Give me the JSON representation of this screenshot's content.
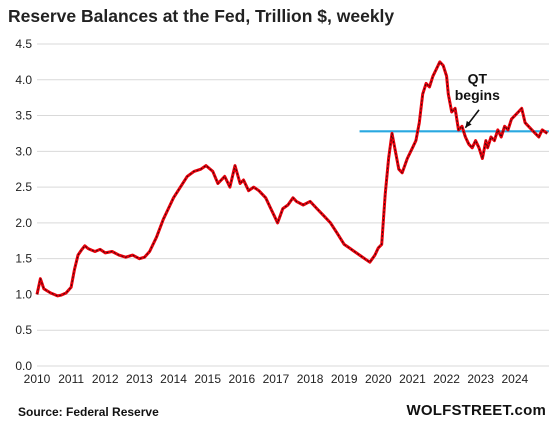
{
  "chart_data": {
    "type": "line",
    "title": "Reserve Balances at the Fed, Trillion $, weekly",
    "xlabel": "",
    "ylabel": "",
    "ylim": [
      0.0,
      4.5
    ],
    "xlim": [
      2010,
      2025
    ],
    "yticks": [
      "0.0",
      "0.5",
      "1.0",
      "1.5",
      "2.0",
      "2.5",
      "3.0",
      "3.5",
      "4.0",
      "4.5"
    ],
    "xticks": [
      "2010",
      "2011",
      "2012",
      "2013",
      "2014",
      "2015",
      "2016",
      "2017",
      "2018",
      "2019",
      "2020",
      "2021",
      "2022",
      "2023",
      "2024"
    ],
    "grid": "horizontal",
    "series": [
      {
        "color": "#e8000b",
        "x": [
          2010.0,
          2010.1,
          2010.2,
          2010.3,
          2010.4,
          2010.5,
          2010.6,
          2010.7,
          2010.85,
          2011.0,
          2011.1,
          2011.2,
          2011.3,
          2011.4,
          2011.5,
          2011.6,
          2011.7,
          2011.85,
          2012.0,
          2012.2,
          2012.4,
          2012.6,
          2012.8,
          2013.0,
          2013.15,
          2013.3,
          2013.5,
          2013.7,
          2013.9,
          2014.0,
          2014.2,
          2014.4,
          2014.6,
          2014.8,
          2014.95,
          2015.05,
          2015.15,
          2015.3,
          2015.5,
          2015.65,
          2015.8,
          2015.95,
          2016.05,
          2016.2,
          2016.35,
          2016.5,
          2016.7,
          2016.85,
          2016.95,
          2017.05,
          2017.2,
          2017.35,
          2017.5,
          2017.6,
          2017.8,
          2018.0,
          2018.2,
          2018.4,
          2018.6,
          2018.8,
          2019.0,
          2019.15,
          2019.3,
          2019.45,
          2019.6,
          2019.75,
          2019.9,
          2020.0,
          2020.1,
          2020.2,
          2020.3,
          2020.4,
          2020.5,
          2020.6,
          2020.7,
          2020.85,
          2021.0,
          2021.1,
          2021.2,
          2021.3,
          2021.4,
          2021.5,
          2021.6,
          2021.7,
          2021.8,
          2021.9,
          2022.0,
          2022.05,
          2022.15,
          2022.25,
          2022.35,
          2022.45,
          2022.55,
          2022.65,
          2022.75,
          2022.85,
          2022.95,
          2023.05,
          2023.15,
          2023.2,
          2023.3,
          2023.4,
          2023.5,
          2023.6,
          2023.7,
          2023.8,
          2023.9,
          2024.0,
          2024.1,
          2024.2,
          2024.3,
          2024.4,
          2024.5,
          2024.6,
          2024.7,
          2024.8,
          2024.95
        ],
        "y": [
          1.0,
          1.22,
          1.08,
          1.05,
          1.02,
          1.0,
          0.98,
          0.99,
          1.02,
          1.1,
          1.35,
          1.55,
          1.62,
          1.68,
          1.64,
          1.62,
          1.6,
          1.63,
          1.58,
          1.6,
          1.55,
          1.52,
          1.55,
          1.5,
          1.52,
          1.6,
          1.8,
          2.05,
          2.25,
          2.35,
          2.5,
          2.65,
          2.72,
          2.75,
          2.8,
          2.76,
          2.72,
          2.55,
          2.65,
          2.5,
          2.8,
          2.55,
          2.6,
          2.45,
          2.5,
          2.45,
          2.35,
          2.2,
          2.1,
          2.0,
          2.2,
          2.25,
          2.35,
          2.3,
          2.25,
          2.3,
          2.2,
          2.1,
          2.0,
          1.85,
          1.7,
          1.65,
          1.6,
          1.55,
          1.5,
          1.45,
          1.55,
          1.65,
          1.7,
          2.4,
          2.9,
          3.25,
          3.0,
          2.75,
          2.7,
          2.9,
          3.05,
          3.15,
          3.4,
          3.8,
          3.95,
          3.9,
          4.05,
          4.15,
          4.25,
          4.2,
          4.05,
          3.8,
          3.55,
          3.6,
          3.3,
          3.35,
          3.2,
          3.1,
          3.05,
          3.15,
          3.05,
          2.9,
          3.15,
          3.05,
          3.2,
          3.15,
          3.3,
          3.2,
          3.35,
          3.3,
          3.45,
          3.5,
          3.55,
          3.6,
          3.4,
          3.35,
          3.3,
          3.25,
          3.2,
          3.3,
          3.25
        ]
      }
    ],
    "reference_line": {
      "y": 3.28,
      "x_from": 2019.45,
      "x_to": 2025.0,
      "color": "#29a8e0"
    },
    "annotations": [
      {
        "text": "QT",
        "x": 2022.9,
        "y": 3.95
      },
      {
        "text": "begins",
        "x": 2022.9,
        "y": 3.72
      }
    ],
    "arrow": {
      "from": [
        2022.95,
        3.58
      ],
      "to": [
        2022.55,
        3.33
      ]
    }
  },
  "footer": {
    "source": "Source: Federal Reserve",
    "brand": "WOLFSTREET.com"
  }
}
